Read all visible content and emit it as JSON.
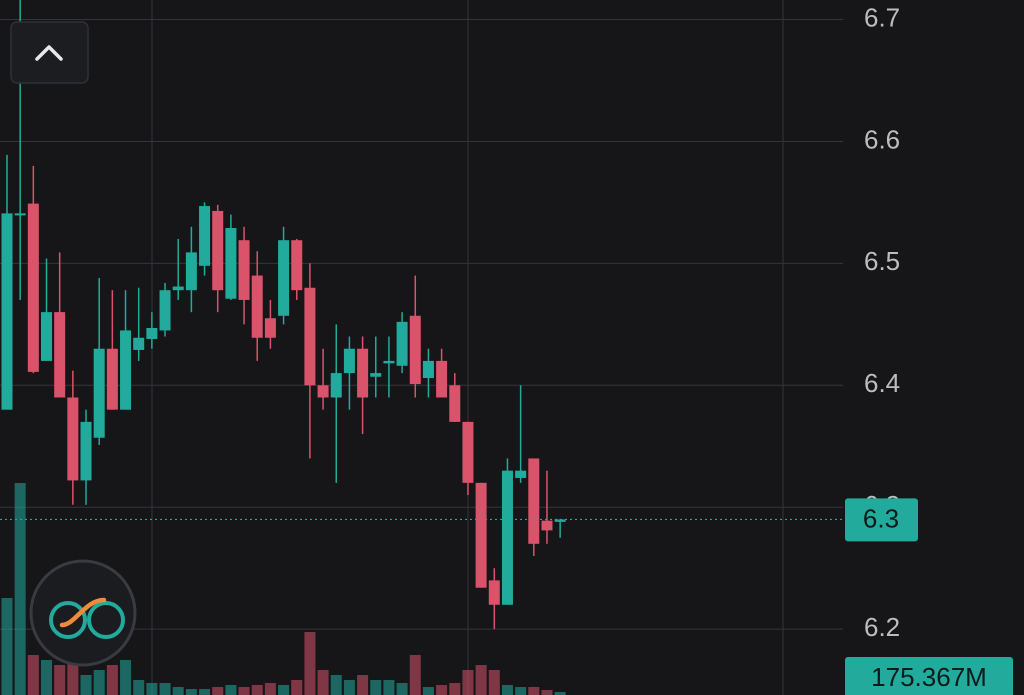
{
  "chart_data": {
    "type": "candlestick",
    "ylim": [
      6.146,
      6.716
    ],
    "yticks": [
      6.2,
      6.3,
      6.4,
      6.5,
      6.6,
      6.7
    ],
    "grid": true,
    "up_color": "#22ab9c",
    "down_color": "#d9546a",
    "open": [
      6.38,
      6.54,
      6.549,
      6.42,
      6.46,
      6.39,
      6.322,
      6.357,
      6.43,
      6.38,
      6.429,
      6.438,
      6.445,
      6.478,
      6.478,
      6.498,
      6.543,
      6.471,
      6.519,
      6.49,
      6.455,
      6.457,
      6.519,
      6.48,
      6.4,
      6.39,
      6.41,
      6.43,
      6.407,
      6.418,
      6.416,
      6.457,
      6.406,
      6.42,
      6.4,
      6.37,
      6.32,
      6.24,
      6.22,
      6.324,
      6.34,
      6.289,
      6.288
    ],
    "high": [
      6.589,
      6.716,
      6.58,
      6.504,
      6.509,
      6.412,
      6.38,
      6.488,
      6.478,
      6.478,
      6.48,
      6.46,
      6.484,
      6.52,
      6.53,
      6.55,
      6.548,
      6.54,
      6.53,
      6.51,
      6.47,
      6.53,
      6.52,
      6.5,
      6.43,
      6.45,
      6.44,
      6.44,
      6.44,
      6.44,
      6.46,
      6.49,
      6.43,
      6.43,
      6.41,
      6.37,
      6.32,
      6.25,
      6.34,
      6.4,
      6.34,
      6.33,
      6.29
    ],
    "low": [
      6.38,
      6.47,
      6.41,
      6.42,
      6.39,
      6.302,
      6.302,
      6.351,
      6.38,
      6.38,
      6.42,
      6.43,
      6.44,
      6.47,
      6.46,
      6.49,
      6.46,
      6.47,
      6.45,
      6.42,
      6.43,
      6.45,
      6.47,
      6.34,
      6.38,
      6.32,
      6.38,
      6.36,
      6.39,
      6.39,
      6.41,
      6.39,
      6.39,
      6.39,
      6.37,
      6.31,
      6.234,
      6.2,
      6.22,
      6.32,
      6.26,
      6.27,
      6.275
    ],
    "close": [
      6.541,
      6.541,
      6.411,
      6.46,
      6.39,
      6.322,
      6.37,
      6.43,
      6.38,
      6.445,
      6.439,
      6.447,
      6.478,
      6.481,
      6.509,
      6.547,
      6.478,
      6.529,
      6.47,
      6.439,
      6.439,
      6.519,
      6.478,
      6.4,
      6.39,
      6.41,
      6.43,
      6.39,
      6.41,
      6.42,
      6.452,
      6.401,
      6.42,
      6.39,
      6.37,
      6.32,
      6.234,
      6.22,
      6.33,
      6.33,
      6.27,
      6.281,
      6.29
    ],
    "volume": [
      97,
      212,
      40,
      35,
      30,
      35,
      20,
      25,
      30,
      35,
      15,
      12,
      12,
      8,
      6,
      6,
      8,
      10,
      8,
      10,
      12,
      10,
      15,
      63,
      25,
      20,
      15,
      20,
      15,
      15,
      12,
      40,
      8,
      10,
      12,
      25,
      30,
      25,
      10,
      8,
      8,
      5,
      3
    ],
    "last_price": {
      "value": 6.29,
      "label": "6.3"
    },
    "volume_label": "175.367M"
  }
}
